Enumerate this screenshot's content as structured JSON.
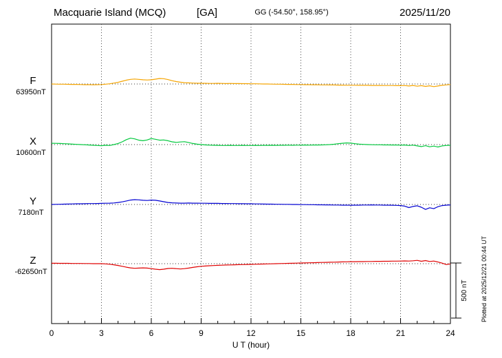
{
  "header": {
    "station": "Macquarie Island (MCQ)",
    "agency_tag": "[GA]",
    "coords": "GG (-54.50°, 158.95°)",
    "date": "2025/11/20"
  },
  "x_axis": {
    "label": "U T (hour)"
  },
  "scale_bar": {
    "label": "500 nT"
  },
  "plotted_note": "Plotted at 2025/12/21 00:44 UT",
  "chart_data": {
    "type": "line",
    "title": "Macquarie Island (MCQ) [GA] magnetogram 2025/11/20",
    "xlabel": "U T (hour)",
    "xlim": [
      0,
      24
    ],
    "x_ticks": [
      0,
      3,
      6,
      9,
      12,
      15,
      18,
      21,
      24
    ],
    "x_step_hours": 0.25,
    "scale_bar_nT": 500,
    "grid": "vertical-dotted-every-3h, dotted baseline per trace",
    "legend_position": "left-margin",
    "series": [
      {
        "name": "F",
        "baseline_label": "63950nT",
        "color": "#f5a400",
        "units": "nT deviation from baseline",
        "values": [
          0,
          -1,
          -2,
          -2,
          -3,
          -4,
          -4,
          -5,
          -6,
          -6,
          -7,
          -6,
          -5,
          -2,
          2,
          8,
          15,
          25,
          35,
          42,
          45,
          42,
          38,
          36,
          38,
          44,
          50,
          48,
          40,
          30,
          22,
          16,
          12,
          10,
          8,
          7,
          6,
          6,
          5,
          5,
          6,
          5,
          4,
          5,
          4,
          4,
          3,
          3,
          2,
          2,
          1,
          0,
          0,
          -1,
          -2,
          -2,
          -3,
          -4,
          -4,
          -5,
          -5,
          -6,
          -6,
          -7,
          -7,
          -8,
          -8,
          -9,
          -9,
          -10,
          -10,
          -11,
          -11,
          -11,
          -12,
          -12,
          -12,
          -13,
          -13,
          -13,
          -14,
          -14,
          -14,
          -15,
          -15,
          -14,
          -18,
          -13,
          -20,
          -15,
          -22,
          -16,
          -24,
          -18,
          -12,
          -8,
          -5
        ]
      },
      {
        "name": "X",
        "baseline_label": "10600nT",
        "color": "#00c83c",
        "units": "nT deviation from baseline",
        "values": [
          12,
          11,
          10,
          8,
          6,
          4,
          2,
          0,
          -2,
          -4,
          -6,
          -8,
          -10,
          -6,
          -8,
          0,
          10,
          25,
          45,
          58,
          52,
          40,
          35,
          42,
          55,
          48,
          40,
          42,
          35,
          25,
          20,
          24,
          26,
          18,
          10,
          4,
          0,
          -3,
          -5,
          -6,
          -7,
          -8,
          -8,
          -7,
          -8,
          -8,
          -7,
          -8,
          -8,
          -7,
          -8,
          -7,
          -7,
          -6,
          -7,
          -6,
          -6,
          -5,
          -6,
          -5,
          -5,
          -4,
          -5,
          -4,
          -4,
          -3,
          -2,
          0,
          3,
          8,
          12,
          15,
          13,
          8,
          4,
          2,
          0,
          -1,
          -2,
          -2,
          -3,
          -3,
          -4,
          -4,
          -5,
          -4,
          -8,
          -5,
          -12,
          -18,
          -10,
          -20,
          -14,
          -22,
          -12,
          -8,
          -6
        ]
      },
      {
        "name": "Y",
        "baseline_label": "7180nT",
        "color": "#0000d2",
        "units": "nT deviation from baseline",
        "values": [
          0,
          1,
          2,
          3,
          4,
          5,
          6,
          6,
          7,
          8,
          8,
          9,
          10,
          11,
          12,
          14,
          18,
          24,
          32,
          40,
          44,
          42,
          38,
          36,
          40,
          38,
          32,
          25,
          18,
          15,
          13,
          12,
          12,
          13,
          12,
          12,
          11,
          11,
          10,
          10,
          10,
          9,
          9,
          8,
          8,
          7,
          7,
          6,
          6,
          5,
          5,
          4,
          3,
          3,
          2,
          2,
          1,
          1,
          0,
          0,
          -1,
          -1,
          -2,
          -2,
          -3,
          -3,
          -4,
          -4,
          -5,
          -5,
          -6,
          -6,
          -7,
          -6,
          -6,
          -5,
          -5,
          -4,
          -5,
          -5,
          -6,
          -6,
          -7,
          -8,
          -10,
          -15,
          -28,
          -18,
          -12,
          -25,
          -45,
          -30,
          -38,
          -20,
          -10,
          -6,
          -4
        ]
      },
      {
        "name": "Z",
        "baseline_label": "-62650nT",
        "color": "#e00000",
        "units": "nT deviation from baseline",
        "values": [
          4,
          4,
          3,
          3,
          3,
          2,
          2,
          2,
          1,
          1,
          0,
          0,
          0,
          -2,
          -5,
          -10,
          -16,
          -24,
          -32,
          -38,
          -42,
          -40,
          -38,
          -40,
          -45,
          -50,
          -54,
          -50,
          -44,
          -42,
          -45,
          -48,
          -45,
          -40,
          -34,
          -28,
          -24,
          -21,
          -19,
          -17,
          -15,
          -14,
          -12,
          -11,
          -10,
          -9,
          -8,
          -7,
          -6,
          -5,
          -4,
          -3,
          -2,
          -1,
          0,
          1,
          2,
          3,
          4,
          5,
          6,
          7,
          8,
          9,
          10,
          11,
          12,
          13,
          14,
          15,
          16,
          17,
          18,
          18,
          19,
          19,
          20,
          20,
          21,
          21,
          22,
          22,
          23,
          23,
          24,
          25,
          24,
          26,
          30,
          22,
          28,
          20,
          24,
          15,
          5,
          -8,
          -2
        ]
      }
    ]
  }
}
